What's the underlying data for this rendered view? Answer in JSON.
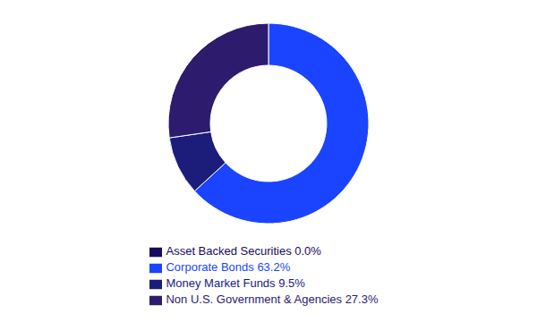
{
  "chart_data": {
    "type": "donut",
    "categories": [
      "Asset Backed Securities 0.0%",
      "Corporate Bonds 63.2%",
      "Money Market Funds 9.5%",
      "Non U.S. Government & Agencies 27.3%"
    ],
    "values": [
      0.001,
      63.2,
      9.5,
      27.3
    ],
    "colors": [
      "#1a0a5e",
      "#1a44ff",
      "#1c1c7a",
      "#2d1b6e"
    ],
    "legend": "bottom"
  }
}
